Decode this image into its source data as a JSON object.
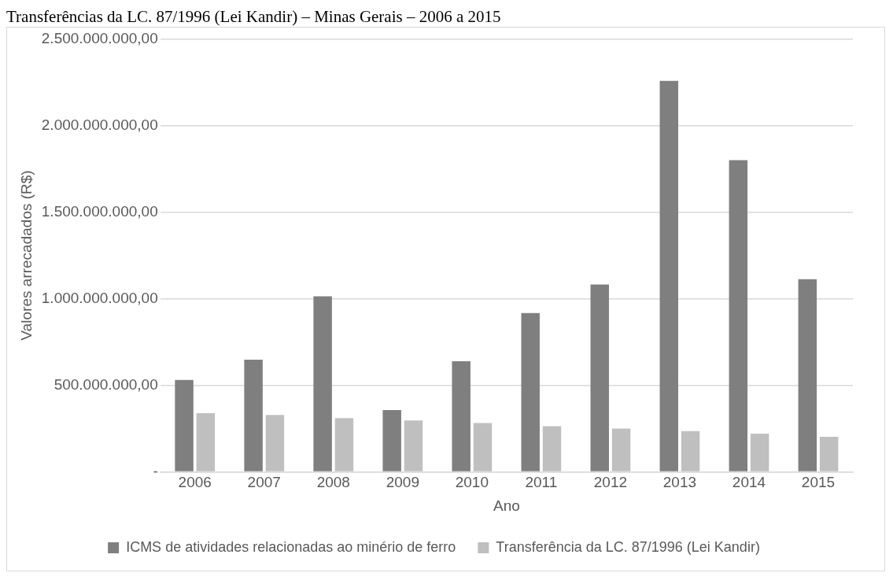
{
  "chart_data": {
    "type": "bar",
    "title": "Transferências da LC. 87/1996 (Lei Kandir) – Minas Gerais – 2006 a 2015",
    "xlabel": "Ano",
    "ylabel": "Valores arrecadados (R$)",
    "categories": [
      "2006",
      "2007",
      "2008",
      "2009",
      "2010",
      "2011",
      "2012",
      "2013",
      "2014",
      "2015"
    ],
    "series": [
      {
        "name": "ICMS de atividades relacionadas ao minério de ferro",
        "color": "#7f7f7f",
        "values": [
          530000000,
          647000000,
          1013000000,
          356000000,
          638000000,
          917000000,
          1081000000,
          2257000000,
          1800000000,
          1112000000
        ]
      },
      {
        "name": "Transferência da LC. 87/1996 (Lei Kandir)",
        "color": "#bfbfbf",
        "values": [
          338000000,
          328000000,
          310000000,
          296000000,
          281000000,
          263000000,
          249000000,
          235000000,
          220000000,
          202000000
        ]
      }
    ],
    "ylim": [
      0,
      2500000000
    ],
    "yticks": [
      {
        "value": 0,
        "label": "-"
      },
      {
        "value": 500000000,
        "label": "500.000.000,00"
      },
      {
        "value": 1000000000,
        "label": "1.000.000.000,00"
      },
      {
        "value": 1500000000,
        "label": "1.500.000.000,00"
      },
      {
        "value": 2000000000,
        "label": "2.000.000.000,00"
      },
      {
        "value": 2500000000,
        "label": "2.500.000.000,00"
      }
    ],
    "grid": "y",
    "legend": "bottom"
  }
}
